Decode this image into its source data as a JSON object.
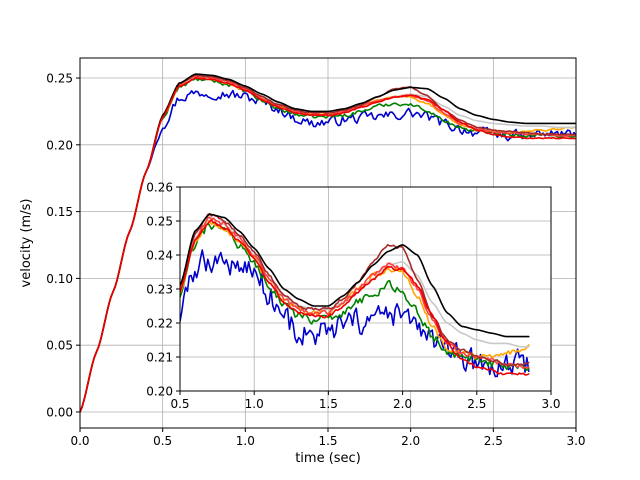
{
  "chart_data": [
    {
      "id": "main",
      "type": "line",
      "title": "",
      "xlabel": "time (sec)",
      "ylabel": "velocity (m/s)",
      "xlim": [
        0.0,
        3.0
      ],
      "ylim": [
        -0.012,
        0.265
      ],
      "xticks": [
        "0.0",
        "0.5",
        "1.0",
        "1.5",
        "2.0",
        "2.5",
        "3.0"
      ],
      "yticks": [
        "0.00",
        "0.05",
        "0.10",
        "0.15",
        "0.20",
        "0.25"
      ],
      "grid": true,
      "legend": "none",
      "series": [
        {
          "color": "#0000cc",
          "noise": 0.0035,
          "x": [
            0,
            0.1,
            0.2,
            0.3,
            0.4,
            0.5,
            0.6,
            0.7,
            0.8,
            0.9,
            1.0,
            1.1,
            1.2,
            1.3,
            1.4,
            1.5,
            1.6,
            1.7,
            1.8,
            1.9,
            2.0,
            2.1,
            2.2,
            2.3,
            2.4,
            2.5,
            2.6,
            2.7,
            2.8,
            2.9,
            3.0
          ],
          "y": [
            0.0,
            0.045,
            0.09,
            0.135,
            0.18,
            0.215,
            0.235,
            0.239,
            0.239,
            0.238,
            0.236,
            0.232,
            0.227,
            0.22,
            0.216,
            0.217,
            0.219,
            0.22,
            0.221,
            0.222,
            0.224,
            0.221,
            0.216,
            0.212,
            0.209,
            0.208,
            0.207,
            0.207,
            0.208,
            0.208,
            0.208
          ]
        },
        {
          "color": "#008000",
          "noise": 0.0012,
          "x": [
            0,
            0.1,
            0.2,
            0.3,
            0.4,
            0.5,
            0.6,
            0.7,
            0.8,
            0.9,
            1.0,
            1.1,
            1.2,
            1.3,
            1.4,
            1.5,
            1.6,
            1.7,
            1.8,
            1.9,
            2.0,
            2.1,
            2.2,
            2.3,
            2.4,
            2.5,
            2.6,
            2.7,
            2.8,
            2.9,
            3.0
          ],
          "y": [
            0.0,
            0.045,
            0.09,
            0.135,
            0.18,
            0.22,
            0.243,
            0.249,
            0.248,
            0.245,
            0.24,
            0.233,
            0.227,
            0.223,
            0.221,
            0.221,
            0.222,
            0.225,
            0.229,
            0.231,
            0.23,
            0.226,
            0.218,
            0.213,
            0.21,
            0.209,
            0.208,
            0.207,
            0.207,
            0.207,
            0.207
          ]
        },
        {
          "color": "#ffa500",
          "noise": 0.0008,
          "x": [
            0,
            0.1,
            0.2,
            0.3,
            0.4,
            0.5,
            0.6,
            0.7,
            0.8,
            0.9,
            1.0,
            1.1,
            1.2,
            1.3,
            1.4,
            1.5,
            1.6,
            1.7,
            1.8,
            1.9,
            2.0,
            2.1,
            2.2,
            2.3,
            2.4,
            2.5,
            2.6,
            2.7,
            2.8,
            2.9,
            3.0
          ],
          "y": [
            0.0,
            0.045,
            0.09,
            0.135,
            0.18,
            0.221,
            0.244,
            0.25,
            0.249,
            0.246,
            0.241,
            0.235,
            0.229,
            0.225,
            0.223,
            0.223,
            0.225,
            0.229,
            0.233,
            0.236,
            0.236,
            0.231,
            0.222,
            0.215,
            0.211,
            0.21,
            0.209,
            0.21,
            0.211,
            0.212,
            0.213
          ]
        },
        {
          "color": "#c8c8c8",
          "noise": 0.0,
          "x": [
            0,
            0.1,
            0.2,
            0.3,
            0.4,
            0.5,
            0.6,
            0.7,
            0.8,
            0.9,
            1.0,
            1.1,
            1.2,
            1.3,
            1.4,
            1.5,
            1.6,
            1.7,
            1.8,
            1.9,
            2.0,
            2.1,
            2.2,
            2.3,
            2.4,
            2.5,
            2.6,
            2.7,
            2.8,
            2.9,
            3.0
          ],
          "y": [
            0.0,
            0.045,
            0.09,
            0.135,
            0.18,
            0.222,
            0.245,
            0.251,
            0.25,
            0.247,
            0.242,
            0.236,
            0.231,
            0.227,
            0.225,
            0.225,
            0.226,
            0.228,
            0.232,
            0.236,
            0.238,
            0.236,
            0.229,
            0.222,
            0.218,
            0.216,
            0.215,
            0.214,
            0.214,
            0.213,
            0.213
          ]
        },
        {
          "color": "#ff4040",
          "noise": 0.0006,
          "x": [
            0,
            0.1,
            0.2,
            0.3,
            0.4,
            0.5,
            0.6,
            0.7,
            0.8,
            0.9,
            1.0,
            1.1,
            1.2,
            1.3,
            1.4,
            1.5,
            1.6,
            1.7,
            1.8,
            1.9,
            2.0,
            2.1,
            2.2,
            2.3,
            2.4,
            2.5,
            2.6,
            2.7,
            2.8,
            2.9,
            3.0
          ],
          "y": [
            0.0,
            0.045,
            0.09,
            0.135,
            0.18,
            0.222,
            0.245,
            0.251,
            0.25,
            0.247,
            0.242,
            0.235,
            0.229,
            0.225,
            0.223,
            0.223,
            0.225,
            0.229,
            0.233,
            0.236,
            0.237,
            0.233,
            0.224,
            0.216,
            0.212,
            0.21,
            0.209,
            0.208,
            0.208,
            0.207,
            0.207
          ]
        },
        {
          "color": "#a52a2a",
          "noise": 0.0004,
          "x": [
            0,
            0.1,
            0.2,
            0.3,
            0.4,
            0.5,
            0.6,
            0.7,
            0.8,
            0.9,
            1.0,
            1.1,
            1.2,
            1.3,
            1.4,
            1.5,
            1.6,
            1.7,
            1.8,
            1.9,
            2.0,
            2.1,
            2.2,
            2.3,
            2.4,
            2.5,
            2.6,
            2.7,
            2.8,
            2.9,
            3.0
          ],
          "y": [
            0.0,
            0.045,
            0.09,
            0.135,
            0.18,
            0.222,
            0.246,
            0.252,
            0.251,
            0.248,
            0.243,
            0.236,
            0.23,
            0.226,
            0.224,
            0.224,
            0.226,
            0.23,
            0.236,
            0.242,
            0.243,
            0.237,
            0.226,
            0.218,
            0.213,
            0.211,
            0.21,
            0.209,
            0.208,
            0.208,
            0.208
          ]
        },
        {
          "color": "#000000",
          "noise": 0.0,
          "x": [
            0,
            0.1,
            0.2,
            0.3,
            0.4,
            0.5,
            0.6,
            0.7,
            0.8,
            0.9,
            1.0,
            1.1,
            1.2,
            1.3,
            1.4,
            1.5,
            1.6,
            1.7,
            1.8,
            1.9,
            2.0,
            2.1,
            2.2,
            2.3,
            2.4,
            2.5,
            2.6,
            2.7,
            2.8,
            2.9,
            3.0
          ],
          "y": [
            0.0,
            0.045,
            0.09,
            0.135,
            0.18,
            0.222,
            0.246,
            0.253,
            0.252,
            0.249,
            0.244,
            0.238,
            0.232,
            0.227,
            0.225,
            0.225,
            0.227,
            0.231,
            0.236,
            0.241,
            0.243,
            0.242,
            0.235,
            0.227,
            0.222,
            0.219,
            0.217,
            0.216,
            0.216,
            0.216,
            0.216
          ]
        },
        {
          "color": "#ee0000",
          "noise": 0.0004,
          "x": [
            0,
            0.1,
            0.2,
            0.3,
            0.4,
            0.5,
            0.6,
            0.7,
            0.8,
            0.9,
            1.0,
            1.1,
            1.2,
            1.3,
            1.4,
            1.5,
            1.6,
            1.7,
            1.8,
            1.9,
            2.0,
            2.1,
            2.2,
            2.3,
            2.4,
            2.5,
            2.6,
            2.7,
            2.8,
            2.9,
            3.0
          ],
          "y": [
            0.0,
            0.045,
            0.09,
            0.135,
            0.18,
            0.221,
            0.244,
            0.25,
            0.249,
            0.246,
            0.241,
            0.234,
            0.228,
            0.224,
            0.222,
            0.222,
            0.224,
            0.228,
            0.232,
            0.236,
            0.237,
            0.234,
            0.226,
            0.217,
            0.211,
            0.208,
            0.206,
            0.205,
            0.205,
            0.205,
            0.205
          ]
        }
      ]
    },
    {
      "id": "inset",
      "type": "line",
      "title": "",
      "xlabel": "",
      "ylabel": "",
      "xlim": [
        0.5,
        3.0
      ],
      "ylim": [
        0.2,
        0.26
      ],
      "xticks": [
        "0.5",
        "1.0",
        "1.5",
        "2.0",
        "2.5",
        "3.0"
      ],
      "yticks": [
        "0.20",
        "0.21",
        "0.22",
        "0.23",
        "0.24",
        "0.25",
        "0.26"
      ],
      "grid": true,
      "legend": "none",
      "series": [
        {
          "color": "#0000cc",
          "noise": 0.0035,
          "x": [
            0.5,
            0.6,
            0.7,
            0.8,
            0.9,
            1.0,
            1.1,
            1.2,
            1.3,
            1.4,
            1.5,
            1.6,
            1.7,
            1.8,
            1.9,
            2.0,
            2.1,
            2.2,
            2.3,
            2.4,
            2.5,
            2.6,
            2.7,
            2.8,
            2.85
          ],
          "y": [
            0.222,
            0.236,
            0.239,
            0.238,
            0.237,
            0.235,
            0.229,
            0.222,
            0.217,
            0.216,
            0.217,
            0.219,
            0.22,
            0.221,
            0.222,
            0.222,
            0.219,
            0.215,
            0.211,
            0.209,
            0.208,
            0.207,
            0.207,
            0.208,
            0.208
          ]
        },
        {
          "color": "#008000",
          "noise": 0.0012,
          "x": [
            0.5,
            0.6,
            0.7,
            0.8,
            0.9,
            1.0,
            1.1,
            1.2,
            1.3,
            1.4,
            1.5,
            1.6,
            1.7,
            1.8,
            1.9,
            2.0,
            2.1,
            2.2,
            2.3,
            2.4,
            2.5,
            2.6,
            2.7,
            2.8,
            2.85
          ],
          "y": [
            0.228,
            0.243,
            0.249,
            0.247,
            0.243,
            0.238,
            0.231,
            0.225,
            0.222,
            0.221,
            0.221,
            0.223,
            0.226,
            0.229,
            0.231,
            0.229,
            0.223,
            0.216,
            0.212,
            0.21,
            0.209,
            0.208,
            0.207,
            0.207,
            0.207
          ]
        },
        {
          "color": "#ffa500",
          "noise": 0.0008,
          "x": [
            0.5,
            0.6,
            0.7,
            0.8,
            0.9,
            1.0,
            1.1,
            1.2,
            1.3,
            1.4,
            1.5,
            1.6,
            1.7,
            1.8,
            1.9,
            2.0,
            2.1,
            2.2,
            2.3,
            2.4,
            2.5,
            2.6,
            2.7,
            2.8,
            2.85
          ],
          "y": [
            0.229,
            0.244,
            0.25,
            0.248,
            0.244,
            0.239,
            0.232,
            0.227,
            0.224,
            0.223,
            0.223,
            0.226,
            0.23,
            0.234,
            0.236,
            0.235,
            0.228,
            0.219,
            0.213,
            0.211,
            0.21,
            0.21,
            0.211,
            0.212,
            0.213
          ]
        },
        {
          "color": "#c8c8c8",
          "noise": 0.0,
          "x": [
            0.5,
            0.6,
            0.7,
            0.8,
            0.9,
            1.0,
            1.1,
            1.2,
            1.3,
            1.4,
            1.5,
            1.6,
            1.7,
            1.8,
            1.9,
            2.0,
            2.1,
            2.2,
            2.3,
            2.4,
            2.5,
            2.6,
            2.7,
            2.8,
            2.85
          ],
          "y": [
            0.23,
            0.245,
            0.251,
            0.249,
            0.245,
            0.24,
            0.233,
            0.228,
            0.225,
            0.224,
            0.224,
            0.226,
            0.229,
            0.233,
            0.237,
            0.238,
            0.234,
            0.226,
            0.22,
            0.217,
            0.215,
            0.214,
            0.214,
            0.213,
            0.213
          ]
        },
        {
          "color": "#ff4040",
          "noise": 0.0006,
          "x": [
            0.5,
            0.6,
            0.7,
            0.8,
            0.9,
            1.0,
            1.1,
            1.2,
            1.3,
            1.4,
            1.5,
            1.6,
            1.7,
            1.8,
            1.9,
            2.0,
            2.1,
            2.2,
            2.3,
            2.4,
            2.5,
            2.6,
            2.7,
            2.8,
            2.85
          ],
          "y": [
            0.23,
            0.245,
            0.251,
            0.249,
            0.245,
            0.24,
            0.233,
            0.227,
            0.224,
            0.223,
            0.223,
            0.226,
            0.23,
            0.234,
            0.237,
            0.236,
            0.23,
            0.221,
            0.214,
            0.211,
            0.21,
            0.209,
            0.208,
            0.207,
            0.207
          ]
        },
        {
          "color": "#a52a2a",
          "noise": 0.0004,
          "x": [
            0.5,
            0.6,
            0.7,
            0.8,
            0.9,
            1.0,
            1.1,
            1.2,
            1.3,
            1.4,
            1.5,
            1.6,
            1.7,
            1.8,
            1.9,
            2.0,
            2.1,
            2.2,
            2.3,
            2.4,
            2.5,
            2.6,
            2.7,
            2.8,
            2.85
          ],
          "y": [
            0.231,
            0.246,
            0.252,
            0.25,
            0.246,
            0.241,
            0.234,
            0.228,
            0.225,
            0.224,
            0.224,
            0.227,
            0.232,
            0.238,
            0.243,
            0.242,
            0.233,
            0.222,
            0.215,
            0.212,
            0.21,
            0.209,
            0.208,
            0.208,
            0.208
          ]
        },
        {
          "color": "#000000",
          "noise": 0.0,
          "x": [
            0.5,
            0.6,
            0.7,
            0.8,
            0.9,
            1.0,
            1.1,
            1.2,
            1.3,
            1.4,
            1.5,
            1.6,
            1.7,
            1.8,
            1.9,
            2.0,
            2.1,
            2.2,
            2.3,
            2.4,
            2.5,
            2.6,
            2.7,
            2.8,
            2.85
          ],
          "y": [
            0.231,
            0.247,
            0.252,
            0.251,
            0.247,
            0.242,
            0.236,
            0.23,
            0.227,
            0.225,
            0.225,
            0.228,
            0.232,
            0.237,
            0.241,
            0.243,
            0.24,
            0.231,
            0.223,
            0.219,
            0.218,
            0.217,
            0.216,
            0.216,
            0.216
          ]
        },
        {
          "color": "#ee0000",
          "noise": 0.0004,
          "x": [
            0.5,
            0.6,
            0.7,
            0.8,
            0.9,
            1.0,
            1.1,
            1.2,
            1.3,
            1.4,
            1.5,
            1.6,
            1.7,
            1.8,
            1.9,
            2.0,
            2.1,
            2.2,
            2.3,
            2.4,
            2.5,
            2.6,
            2.7,
            2.8,
            2.85
          ],
          "y": [
            0.229,
            0.244,
            0.25,
            0.248,
            0.244,
            0.239,
            0.232,
            0.226,
            0.223,
            0.222,
            0.222,
            0.225,
            0.229,
            0.233,
            0.236,
            0.236,
            0.231,
            0.222,
            0.214,
            0.209,
            0.207,
            0.206,
            0.205,
            0.205,
            0.205
          ]
        }
      ]
    }
  ]
}
